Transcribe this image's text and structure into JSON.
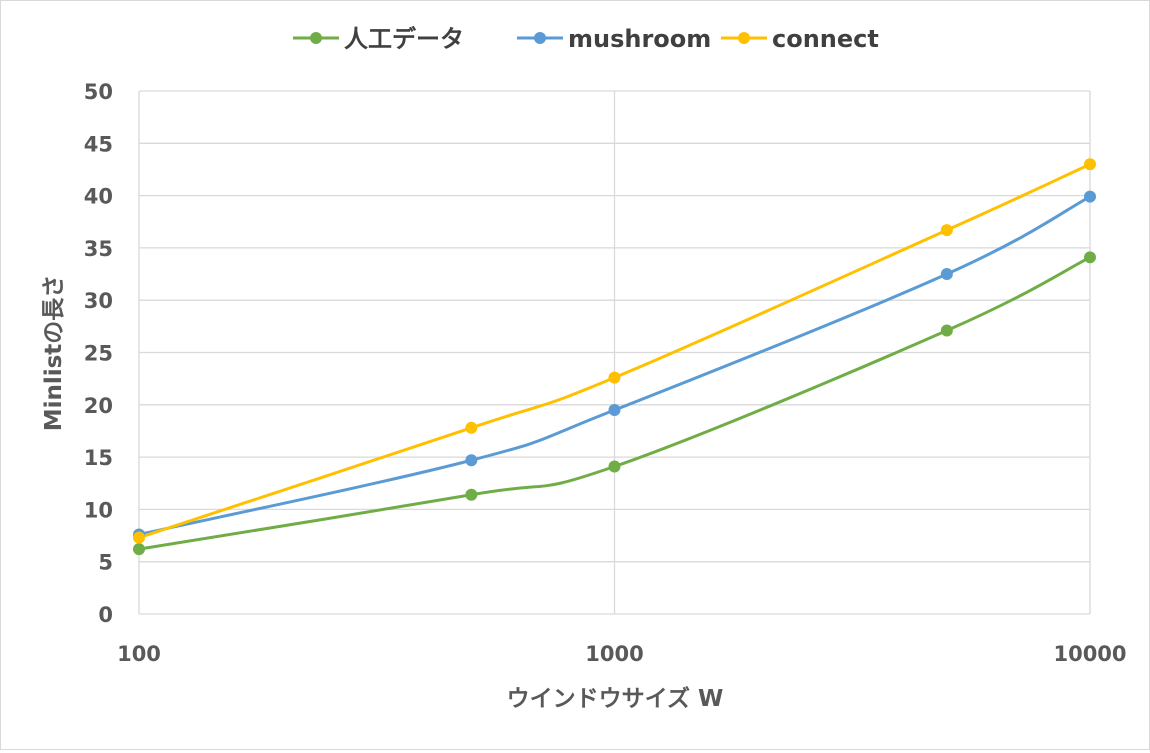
{
  "chart_data": {
    "type": "line",
    "xscale": "log",
    "x": [
      100,
      500,
      1000,
      5000,
      10000
    ],
    "series": [
      {
        "name": "人工データ",
        "color": "#70AD47",
        "values": [
          6.2,
          11.4,
          14.1,
          27.1,
          34.1
        ]
      },
      {
        "name": "mushroom",
        "color": "#5B9BD5",
        "values": [
          7.6,
          14.7,
          19.5,
          32.5,
          39.9
        ]
      },
      {
        "name": "connect",
        "color": "#FFC000",
        "values": [
          7.3,
          17.8,
          22.6,
          36.7,
          43.0
        ]
      }
    ],
    "xlabel": "ウインドウサイズ W",
    "ylabel": "Minlistの長さ",
    "xlim": [
      100,
      10000
    ],
    "ylim": [
      0,
      50
    ],
    "xticks": [
      "100",
      "1000",
      "10000"
    ],
    "yticks": [
      "0",
      "5",
      "10",
      "15",
      "20",
      "25",
      "30",
      "35",
      "40",
      "45",
      "50"
    ],
    "grid": true,
    "legend_position": "top-center",
    "gridline_color": "#d9d9d9",
    "label_color": "#595959"
  }
}
